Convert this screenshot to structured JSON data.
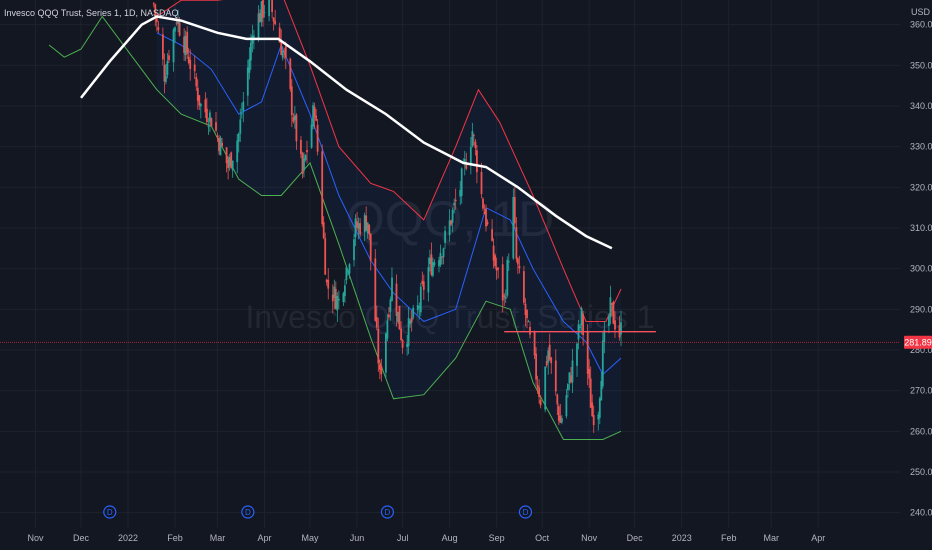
{
  "header": {
    "legend": "Invesco QQQ Trust, Series 1, 1D, NASDAQ",
    "currency": "USD"
  },
  "watermark": {
    "symbol": "QQQ, 1D",
    "name": "Invesco QQQ Trust, Series 1"
  },
  "last_price_label": "281.89",
  "dividend_marker": "D",
  "colors": {
    "background": "#131722",
    "up": "#26a69a",
    "down": "#ef5350",
    "sma200": "#ffffff",
    "basis": "#2962ff",
    "upper_band": "#f23645",
    "lower_band": "#4caf50",
    "last_price": "#f23645",
    "trendline": "#f7525f"
  },
  "chart_data": {
    "type": "candlestick",
    "symbol": "QQQ",
    "y_ticks": [
      "240.00",
      "250.00",
      "260.00",
      "270.00",
      "280.00",
      "290.00",
      "300.00",
      "310.00",
      "320.00",
      "330.00",
      "340.00",
      "350.00",
      "360.00"
    ],
    "x_ticks": [
      "Nov",
      "Dec",
      "2022",
      "Feb",
      "Mar",
      "Apr",
      "May",
      "Jun",
      "Jul",
      "Aug",
      "Sep",
      "Oct",
      "Nov",
      "Dec",
      "2023",
      "Feb",
      "Mar",
      "Apr"
    ],
    "ylim": [
      236,
      365
    ],
    "last_price": 281.89,
    "horizontal_line": 284.5,
    "dividend_months": [
      "Mar",
      "Jun",
      "Sep",
      "Dec"
    ],
    "sma200": [
      {
        "d": "2021-12-01",
        "v": 342
      },
      {
        "d": "2021-12-20",
        "v": 351
      },
      {
        "d": "2022-01-10",
        "v": 360
      },
      {
        "d": "2022-01-20",
        "v": 362
      },
      {
        "d": "2022-02-05",
        "v": 361
      },
      {
        "d": "2022-03-01",
        "v": 358
      },
      {
        "d": "2022-03-20",
        "v": 356.5
      },
      {
        "d": "2022-04-10",
        "v": 356.5
      },
      {
        "d": "2022-05-01",
        "v": 351
      },
      {
        "d": "2022-05-25",
        "v": 344
      },
      {
        "d": "2022-06-20",
        "v": 338
      },
      {
        "d": "2022-07-15",
        "v": 331
      },
      {
        "d": "2022-08-10",
        "v": 326
      },
      {
        "d": "2022-08-25",
        "v": 325
      },
      {
        "d": "2022-09-15",
        "v": 320
      },
      {
        "d": "2022-10-10",
        "v": 313
      },
      {
        "d": "2022-10-30",
        "v": 308
      },
      {
        "d": "2022-11-16",
        "v": 305
      }
    ],
    "bb_basis": [
      {
        "d": "2022-01-20",
        "v": 358
      },
      {
        "d": "2022-02-05",
        "v": 355
      },
      {
        "d": "2022-02-25",
        "v": 349
      },
      {
        "d": "2022-03-15",
        "v": 338
      },
      {
        "d": "2022-03-30",
        "v": 341
      },
      {
        "d": "2022-04-12",
        "v": 355
      },
      {
        "d": "2022-05-01",
        "v": 338
      },
      {
        "d": "2022-05-20",
        "v": 318
      },
      {
        "d": "2022-06-10",
        "v": 302
      },
      {
        "d": "2022-06-25",
        "v": 294
      },
      {
        "d": "2022-07-15",
        "v": 287
      },
      {
        "d": "2022-08-05",
        "v": 290
      },
      {
        "d": "2022-08-25",
        "v": 315
      },
      {
        "d": "2022-09-10",
        "v": 312
      },
      {
        "d": "2022-09-25",
        "v": 300
      },
      {
        "d": "2022-10-15",
        "v": 287
      },
      {
        "d": "2022-10-30",
        "v": 282
      },
      {
        "d": "2022-11-10",
        "v": 274
      },
      {
        "d": "2022-11-22",
        "v": 278
      }
    ],
    "bb_upper": [
      {
        "d": "2022-01-20",
        "v": 362
      },
      {
        "d": "2022-02-05",
        "v": 366
      },
      {
        "d": "2022-03-01",
        "v": 366
      },
      {
        "d": "2022-03-20",
        "v": 367
      },
      {
        "d": "2022-04-12",
        "v": 368
      },
      {
        "d": "2022-05-01",
        "v": 350
      },
      {
        "d": "2022-05-20",
        "v": 330
      },
      {
        "d": "2022-06-10",
        "v": 321
      },
      {
        "d": "2022-06-25",
        "v": 319
      },
      {
        "d": "2022-07-15",
        "v": 312
      },
      {
        "d": "2022-08-05",
        "v": 330
      },
      {
        "d": "2022-08-20",
        "v": 344
      },
      {
        "d": "2022-09-03",
        "v": 336
      },
      {
        "d": "2022-09-25",
        "v": 318
      },
      {
        "d": "2022-10-15",
        "v": 300
      },
      {
        "d": "2022-10-30",
        "v": 287
      },
      {
        "d": "2022-11-12",
        "v": 287
      },
      {
        "d": "2022-11-22",
        "v": 295
      }
    ],
    "bb_lower": [
      {
        "d": "2021-11-10",
        "v": 355
      },
      {
        "d": "2021-11-20",
        "v": 352
      },
      {
        "d": "2021-12-01",
        "v": 354
      },
      {
        "d": "2021-12-15",
        "v": 362
      },
      {
        "d": "2022-01-20",
        "v": 344
      },
      {
        "d": "2022-02-05",
        "v": 338
      },
      {
        "d": "2022-02-25",
        "v": 335
      },
      {
        "d": "2022-03-15",
        "v": 322
      },
      {
        "d": "2022-03-30",
        "v": 318
      },
      {
        "d": "2022-04-12",
        "v": 318
      },
      {
        "d": "2022-05-01",
        "v": 326
      },
      {
        "d": "2022-05-20",
        "v": 306
      },
      {
        "d": "2022-06-10",
        "v": 283
      },
      {
        "d": "2022-06-25",
        "v": 268
      },
      {
        "d": "2022-07-15",
        "v": 269
      },
      {
        "d": "2022-08-05",
        "v": 278
      },
      {
        "d": "2022-08-25",
        "v": 292
      },
      {
        "d": "2022-09-10",
        "v": 290
      },
      {
        "d": "2022-09-25",
        "v": 272
      },
      {
        "d": "2022-10-15",
        "v": 258
      },
      {
        "d": "2022-10-30",
        "v": 258
      },
      {
        "d": "2022-11-10",
        "v": 258
      },
      {
        "d": "2022-11-22",
        "v": 260
      }
    ],
    "price_path": [
      {
        "d": "2022-01-18",
        "v": 365
      },
      {
        "d": "2022-01-25",
        "v": 348
      },
      {
        "d": "2022-02-02",
        "v": 362
      },
      {
        "d": "2022-02-10",
        "v": 352
      },
      {
        "d": "2022-02-18",
        "v": 340
      },
      {
        "d": "2022-02-25",
        "v": 337
      },
      {
        "d": "2022-03-08",
        "v": 325
      },
      {
        "d": "2022-03-15",
        "v": 333
      },
      {
        "d": "2022-03-25",
        "v": 360
      },
      {
        "d": "2022-04-04",
        "v": 366
      },
      {
        "d": "2022-04-14",
        "v": 352
      },
      {
        "d": "2022-04-26",
        "v": 323
      },
      {
        "d": "2022-05-04",
        "v": 340
      },
      {
        "d": "2022-05-12",
        "v": 296
      },
      {
        "d": "2022-05-20",
        "v": 292
      },
      {
        "d": "2022-05-31",
        "v": 310
      },
      {
        "d": "2022-06-08",
        "v": 312
      },
      {
        "d": "2022-06-16",
        "v": 273
      },
      {
        "d": "2022-06-24",
        "v": 297
      },
      {
        "d": "2022-07-01",
        "v": 282
      },
      {
        "d": "2022-07-11",
        "v": 290
      },
      {
        "d": "2022-07-18",
        "v": 300
      },
      {
        "d": "2022-07-28",
        "v": 306
      },
      {
        "d": "2022-08-08",
        "v": 320
      },
      {
        "d": "2022-08-16",
        "v": 334
      },
      {
        "d": "2022-08-22",
        "v": 318
      },
      {
        "d": "2022-08-29",
        "v": 304
      },
      {
        "d": "2022-09-06",
        "v": 292
      },
      {
        "d": "2022-09-12",
        "v": 316
      },
      {
        "d": "2022-09-14",
        "v": 302
      },
      {
        "d": "2022-09-23",
        "v": 282
      },
      {
        "d": "2022-09-30",
        "v": 268
      },
      {
        "d": "2022-10-05",
        "v": 280
      },
      {
        "d": "2022-10-13",
        "v": 262
      },
      {
        "d": "2022-10-21",
        "v": 276
      },
      {
        "d": "2022-10-27",
        "v": 288
      },
      {
        "d": "2022-11-03",
        "v": 264
      },
      {
        "d": "2022-11-07",
        "v": 266
      },
      {
        "d": "2022-11-10",
        "v": 280
      },
      {
        "d": "2022-11-15",
        "v": 290
      },
      {
        "d": "2022-11-21",
        "v": 284
      },
      {
        "d": "2022-11-22",
        "v": 285
      }
    ]
  }
}
